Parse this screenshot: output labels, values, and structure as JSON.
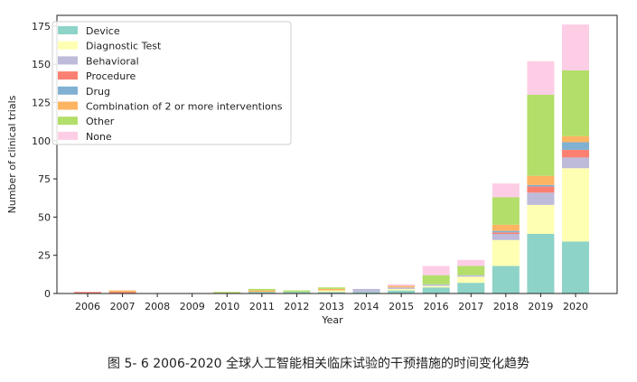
{
  "caption": "图 5- 6 2006-2020 全球人工智能相关临床试验的干预措施的时间变化趋势",
  "chart_data": {
    "type": "bar",
    "stacked": true,
    "xlabel": "Year",
    "ylabel": "Number of clinical trials",
    "ylim": [
      0,
      182
    ],
    "yticks": [
      0,
      25,
      50,
      75,
      100,
      125,
      150,
      175
    ],
    "categories": [
      "2006",
      "2007",
      "2008",
      "2009",
      "2010",
      "2011",
      "2012",
      "2013",
      "2014",
      "2015",
      "2016",
      "2017",
      "2018",
      "2019",
      "2020"
    ],
    "legend_position": "top-left",
    "grid": false,
    "series": [
      {
        "name": "Device",
        "color": "#8dd3c7",
        "values": [
          0,
          0,
          0,
          0,
          0,
          1,
          1,
          1,
          1,
          2,
          4,
          7,
          18,
          39,
          34
        ]
      },
      {
        "name": "Diagnostic Test",
        "color": "#ffffb3",
        "values": [
          0,
          0,
          0,
          0,
          0,
          0,
          0,
          1,
          0,
          1,
          1,
          4,
          17,
          19,
          48
        ]
      },
      {
        "name": "Behavioral",
        "color": "#bebada",
        "values": [
          0,
          0,
          0,
          0,
          0,
          0,
          0,
          0,
          2,
          1,
          1,
          1,
          4,
          8,
          7
        ]
      },
      {
        "name": "Procedure",
        "color": "#fb8072",
        "values": [
          1,
          1,
          0,
          0,
          0,
          0,
          0,
          0,
          0,
          0,
          0,
          0,
          1,
          4,
          5
        ]
      },
      {
        "name": "Drug",
        "color": "#80b1d3",
        "values": [
          0,
          0,
          0,
          0,
          0,
          0,
          0,
          0,
          0,
          0,
          0,
          0,
          1,
          1,
          5
        ]
      },
      {
        "name": "Combination of 2 or more interventions",
        "color": "#fdb462",
        "values": [
          0,
          1,
          0,
          0,
          0,
          1,
          0,
          1,
          0,
          1,
          0,
          0,
          4,
          6,
          4
        ]
      },
      {
        "name": "Other",
        "color": "#b3de69",
        "values": [
          0,
          0,
          0,
          0,
          1,
          1,
          1,
          1,
          0,
          0,
          6,
          6,
          18,
          53,
          43
        ]
      },
      {
        "name": "None",
        "color": "#fccde5",
        "values": [
          0,
          0,
          0,
          0,
          0,
          0,
          0,
          0,
          0,
          1,
          6,
          4,
          9,
          22,
          30
        ]
      }
    ]
  }
}
